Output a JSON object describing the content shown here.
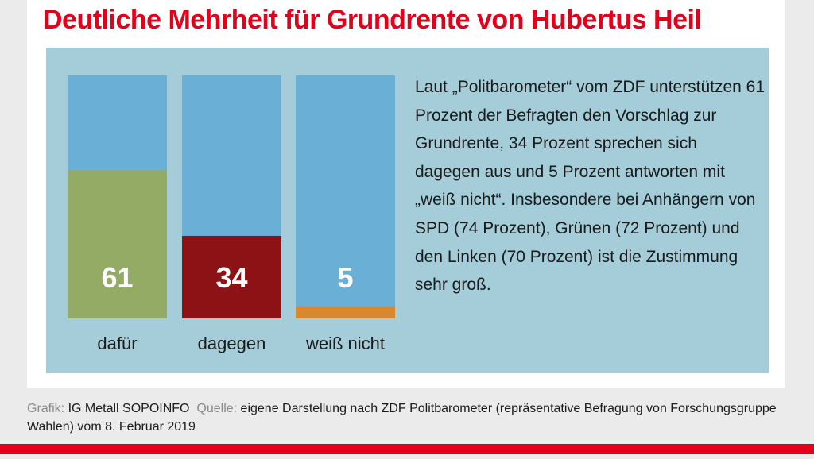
{
  "title": "Deutliche Mehrheit für Grundrente von Hubertus Heil",
  "chart_data": {
    "type": "bar",
    "stacked_percent": true,
    "categories": [
      "dafür",
      "dagegen",
      "weiß nicht"
    ],
    "values": [
      61,
      34,
      5
    ],
    "ylim": [
      0,
      100
    ],
    "colors": {
      "background_bar": "#6aafd6",
      "bars": [
        "#94ab66",
        "#8d1216",
        "#d8882e"
      ],
      "value_label": "#ffffff",
      "panel": "#a5cdd9"
    }
  },
  "description": "Laut „Politbarometer“ vom ZDF unterstützen 61 Prozent der Befragten den Vorschlag zur Grundrente, 34 Prozent sprechen sich dagegen aus und 5 Prozent antworten mit „weiß nicht“. Insbesondere bei Anhängern von SPD (74 Prozent), Grünen (72 Prozent) und den Linken (70 Prozent) ist die Zustimmung sehr groß.",
  "footer": {
    "grafik_label": "Grafik:",
    "grafik_value": "IG Metall SOPOINFO",
    "quelle_label": "Quelle:",
    "quelle_value": "eigene Darstellung nach ZDF Politbarometer (repräsentative Befragung von Forschungsgruppe Wahlen) vom 8. Februar 2019"
  },
  "colors": {
    "title": "#e2001a",
    "accent_line": "#e2001a"
  }
}
